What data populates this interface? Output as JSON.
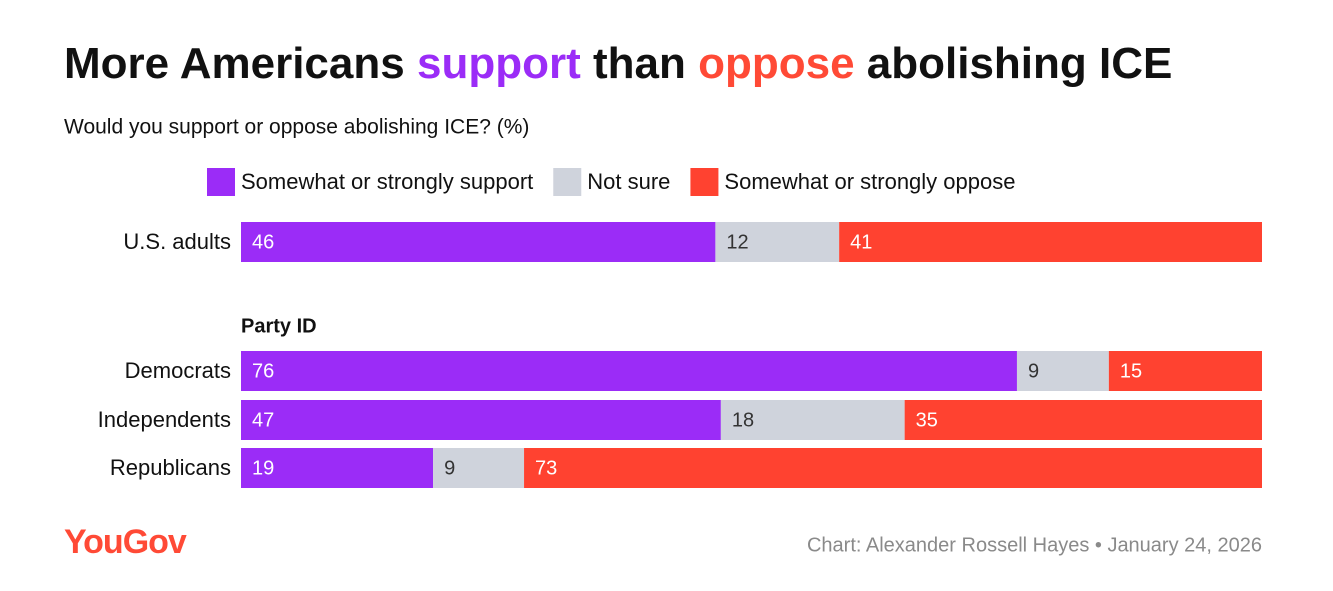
{
  "chart_data": {
    "type": "stacked-bar",
    "title": [
      {
        "text": "More Americans"
      },
      {
        "text": "support",
        "color": "#9b2cf7"
      },
      {
        "text": "than"
      },
      {
        "text": "oppose",
        "color": "#ff4a36"
      },
      {
        "text": "abolishing ICE"
      }
    ],
    "subtitle": "Would you support or oppose abolishing ICE? (%)",
    "categories": [
      "U.S. adults",
      "Democrats",
      "Independents",
      "Republicans"
    ],
    "group_label": "Party ID",
    "series": [
      {
        "name": "Somewhat or strongly support",
        "color": "#9b2cf7",
        "label_color": "#ffffff",
        "values": [
          46,
          76,
          47,
          19
        ]
      },
      {
        "name": "Not sure",
        "color": "#cfd3dc",
        "label_color": "#333333",
        "values": [
          12,
          9,
          18,
          9
        ]
      },
      {
        "name": "Somewhat or strongly oppose",
        "color": "#ff4230",
        "label_color": "#ffffff",
        "values": [
          41,
          15,
          35,
          73
        ]
      }
    ],
    "logo": "YouGov",
    "credit": "Chart: Alexander Rossell Hayes • January 24, 2026"
  }
}
